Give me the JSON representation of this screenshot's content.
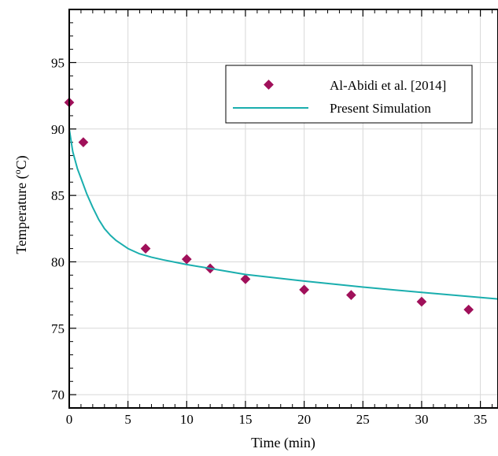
{
  "chart_data": {
    "type": "scatter",
    "xlabel": "Time (min)",
    "ylabel_main": "Temperature (",
    "ylabel_sup": "o",
    "ylabel_end": "C)",
    "xlim": [
      0,
      36.5
    ],
    "ylim": [
      69,
      99
    ],
    "x_ticks": [
      0,
      5,
      10,
      15,
      20,
      25,
      30,
      35
    ],
    "y_ticks": [
      70,
      75,
      80,
      85,
      90,
      95
    ],
    "grid": true,
    "legend_position": "top-right",
    "series": [
      {
        "name": "Al-Abidi et al. [2014]",
        "kind": "markers",
        "marker": "diamond",
        "color": "#a0105a",
        "x": [
          0,
          1.2,
          6.5,
          10,
          12,
          15,
          20,
          24,
          30,
          34
        ],
        "y": [
          92,
          89,
          81,
          80.2,
          79.5,
          78.7,
          77.9,
          77.5,
          77,
          76.4
        ]
      },
      {
        "name": "Present Simulation",
        "kind": "line",
        "color": "#1aaeae",
        "x": [
          0,
          0.3,
          0.7,
          1,
          1.5,
          2,
          2.5,
          3,
          3.5,
          4,
          5,
          6,
          7,
          8,
          10,
          12,
          15,
          20,
          25,
          30,
          36.5
        ],
        "y": [
          90,
          88.3,
          87,
          86.3,
          85.1,
          84.1,
          83.2,
          82.5,
          82,
          81.6,
          81.0,
          80.6,
          80.35,
          80.15,
          79.8,
          79.5,
          79.05,
          78.55,
          78.1,
          77.7,
          77.2
        ]
      }
    ]
  }
}
